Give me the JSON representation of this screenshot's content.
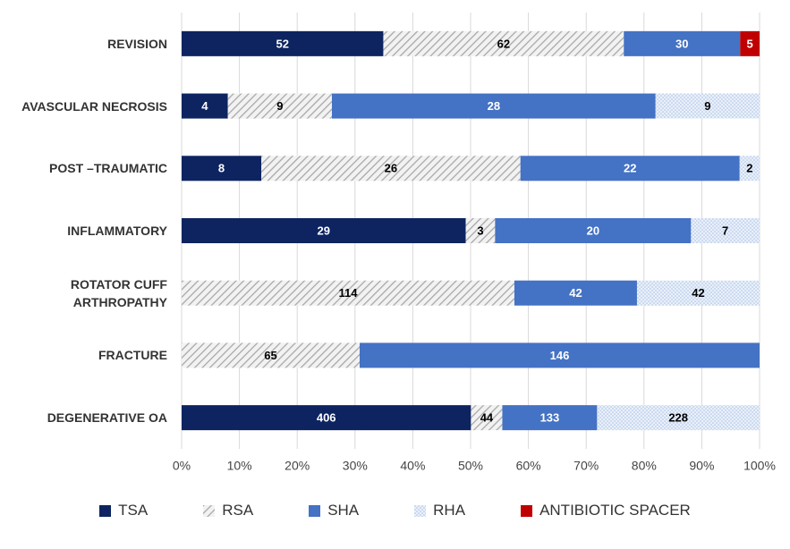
{
  "chart_data": {
    "type": "bar",
    "orientation": "horizontal",
    "stacking": "percent",
    "categories": [
      "REVISION",
      "AVASCULAR NECROSIS",
      "POST –TRAUMATIC",
      "INFLAMMATORY",
      "ROTATOR CUFF ARTHROPATHY",
      "FRACTURE",
      "DEGENERATIVE OA"
    ],
    "series": [
      {
        "name": "TSA",
        "color": "#0d2461",
        "label_color": "#ffffff",
        "values": [
          52,
          4,
          8,
          29,
          null,
          null,
          406
        ]
      },
      {
        "name": "RSA",
        "color": "#b0b0b0",
        "pattern": "hatch",
        "label_color": "#000000",
        "values": [
          62,
          9,
          26,
          3,
          114,
          65,
          44
        ]
      },
      {
        "name": "SHA",
        "color": "#4472c4",
        "label_color": "#ffffff",
        "values": [
          30,
          28,
          22,
          20,
          42,
          146,
          133
        ]
      },
      {
        "name": "RHA",
        "color": "#bdd0ec",
        "pattern": "dots",
        "label_color": "#000000",
        "values": [
          null,
          9,
          2,
          7,
          42,
          null,
          228
        ]
      },
      {
        "name": "ANTIBIOTIC SPACER",
        "color": "#c00000",
        "label_color": "#ffffff",
        "values": [
          5,
          null,
          null,
          null,
          null,
          null,
          null
        ]
      }
    ],
    "xlim": [
      0,
      100
    ],
    "xticks": [
      {
        "value": 0,
        "label": "0%"
      },
      {
        "value": 10,
        "label": "10%"
      },
      {
        "value": 20,
        "label": "20%"
      },
      {
        "value": 30,
        "label": "30%"
      },
      {
        "value": 40,
        "label": "40%"
      },
      {
        "value": 50,
        "label": "50%"
      },
      {
        "value": 60,
        "label": "60%"
      },
      {
        "value": 70,
        "label": "70%"
      },
      {
        "value": 80,
        "label": "80%"
      },
      {
        "value": 90,
        "label": "90%"
      },
      {
        "value": 100,
        "label": "100%"
      }
    ],
    "grid": true,
    "legend": "bottom"
  }
}
